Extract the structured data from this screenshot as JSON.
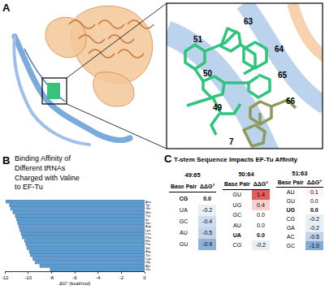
{
  "panel_labels": [
    "A",
    "B",
    "C"
  ],
  "panel_a": {
    "residue_labels": [
      "51",
      "63",
      "64",
      "50",
      "65",
      "49",
      "66",
      "7"
    ]
  },
  "chart_data": {
    "type": "bar",
    "orientation": "horizontal",
    "title": "Binding Affinity of Different tRNAs Charged with Valine to EF-Tu",
    "xlabel": "ΔG° (kcal/mol)",
    "categories": [
      "Asn",
      "Tyr",
      "Gln",
      "Met",
      "Trp",
      "Ile",
      "Ser",
      "Asp",
      "Lys",
      "Leu",
      "Phe",
      "His",
      "Pro",
      "Val",
      "Arg",
      "Thr",
      "Cys",
      "Gly",
      "Ala",
      "Glu"
    ],
    "values": [
      -11.9,
      -11.6,
      -11.5,
      -11.3,
      -11.1,
      -11.0,
      -10.9,
      -10.8,
      -10.7,
      -10.6,
      -10.5,
      -10.3,
      -10.2,
      -10.1,
      -9.9,
      -9.8,
      -9.6,
      -9.4,
      -9.0,
      -8.1
    ],
    "color": "#5b9fd6",
    "xlim": [
      -12,
      0
    ],
    "xticks": [
      -12,
      -10,
      -8,
      -6,
      -4,
      -2,
      0
    ],
    "grid": false
  },
  "panel_c": {
    "title": "T-stem Sequence Impacts EF-Tu Affinity",
    "header": [
      "Base Pair",
      "ΔΔG°"
    ],
    "tables": [
      {
        "pair": "49:65",
        "rows": [
          {
            "base_pair": "CG",
            "ddG": "0.0",
            "bold": true
          },
          {
            "base_pair": "UA",
            "ddG": "-0.2",
            "bold": false
          },
          {
            "base_pair": "GC",
            "ddG": "-0.4",
            "bold": false
          },
          {
            "base_pair": "AU",
            "ddG": "-0.5",
            "bold": false
          },
          {
            "base_pair": "GU",
            "ddG": "-0.9",
            "bold": false
          }
        ]
      },
      {
        "pair": "50:64",
        "rows": [
          {
            "base_pair": "GU",
            "ddG": "1.4",
            "bold": false
          },
          {
            "base_pair": "UG",
            "ddG": "0.4",
            "bold": false
          },
          {
            "base_pair": "GC",
            "ddG": "0.0",
            "bold": false
          },
          {
            "base_pair": "AU",
            "ddG": "0.0",
            "bold": false
          },
          {
            "base_pair": "UA",
            "ddG": "0.0",
            "bold": true
          },
          {
            "base_pair": "CG",
            "ddG": "-0.2",
            "bold": false
          }
        ]
      },
      {
        "pair": "51:63",
        "rows": [
          {
            "base_pair": "AU",
            "ddG": "0.1",
            "bold": false
          },
          {
            "base_pair": "GU",
            "ddG": "0.0",
            "bold": false
          },
          {
            "base_pair": "UG",
            "ddG": "0.0",
            "bold": true
          },
          {
            "base_pair": "CG",
            "ddG": "-0.2",
            "bold": false
          },
          {
            "base_pair": "GA",
            "ddG": "-0.2",
            "bold": false
          },
          {
            "base_pair": "AC",
            "ddG": "-0.5",
            "bold": false
          },
          {
            "base_pair": "GC",
            "ddG": "-1.0",
            "bold": false
          }
        ]
      }
    ]
  }
}
